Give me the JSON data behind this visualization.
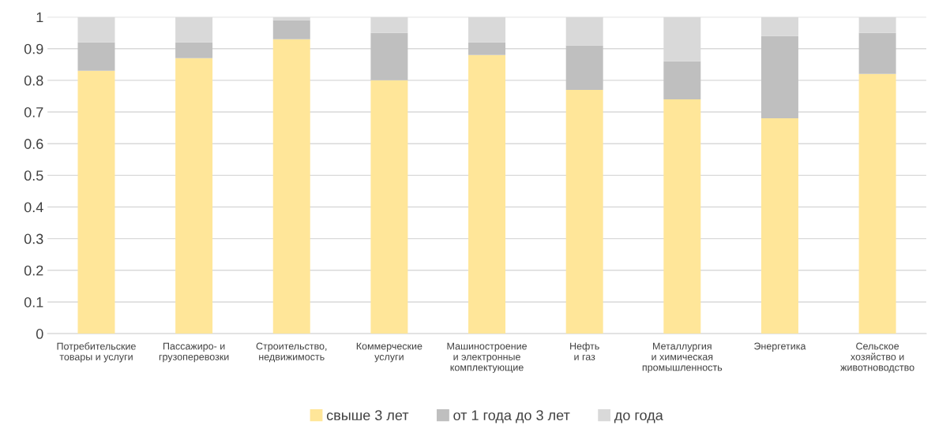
{
  "chart_data": {
    "type": "bar",
    "stacked": true,
    "categories": [
      "Потребительские\nтовары и услуги",
      "Пассажиро- и\nгрузоперевозки",
      "Строительство,\nнедвижимость",
      "Коммерческие\nуслуги",
      "Машиностроение\nи электронные\nкомплектующие",
      "Нефть\nи газ",
      "Металлургия\nи химическая\nпромышленность",
      "Энергетика",
      "Сельское\nхозяйство и\nживотноводство"
    ],
    "series": [
      {
        "name": "свыше 3 лет",
        "color": "#ffe699",
        "values": [
          0.83,
          0.87,
          0.93,
          0.8,
          0.88,
          0.77,
          0.74,
          0.68,
          0.82
        ]
      },
      {
        "name": "от 1 года до 3 лет",
        "color": "#bfbfbf",
        "values": [
          0.09,
          0.05,
          0.06,
          0.15,
          0.04,
          0.14,
          0.12,
          0.26,
          0.13
        ]
      },
      {
        "name": "до года",
        "color": "#d9d9d9",
        "values": [
          0.08,
          0.08,
          0.01,
          0.05,
          0.08,
          0.09,
          0.14,
          0.06,
          0.05
        ]
      }
    ],
    "ylim": [
      0,
      1
    ],
    "yticks": [
      0,
      0.1,
      0.2,
      0.3,
      0.4,
      0.5,
      0.6,
      0.7,
      0.8,
      0.9,
      1
    ],
    "grid": "y",
    "legend": "bottom"
  }
}
